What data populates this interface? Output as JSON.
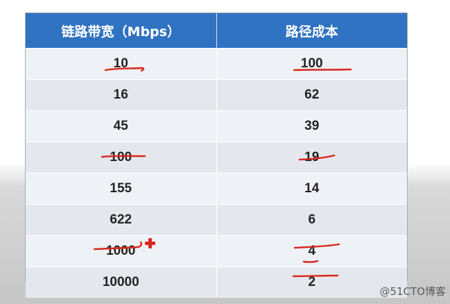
{
  "table": {
    "headers": [
      "链路带宽（Mbps）",
      "路径成本"
    ],
    "rows": [
      [
        "10",
        "100"
      ],
      [
        "16",
        "62"
      ],
      [
        "45",
        "39"
      ],
      [
        "100",
        "19"
      ],
      [
        "155",
        "14"
      ],
      [
        "622",
        "6"
      ],
      [
        "1000",
        "4"
      ],
      [
        "10000",
        "2"
      ]
    ]
  },
  "annotations": {
    "color": "#d8261c",
    "underlined": [
      "10",
      "100",
      "100",
      "19",
      "1000",
      "4",
      "2"
    ],
    "plus_mark_row": "1000"
  },
  "watermark": "@51CTO博客"
}
